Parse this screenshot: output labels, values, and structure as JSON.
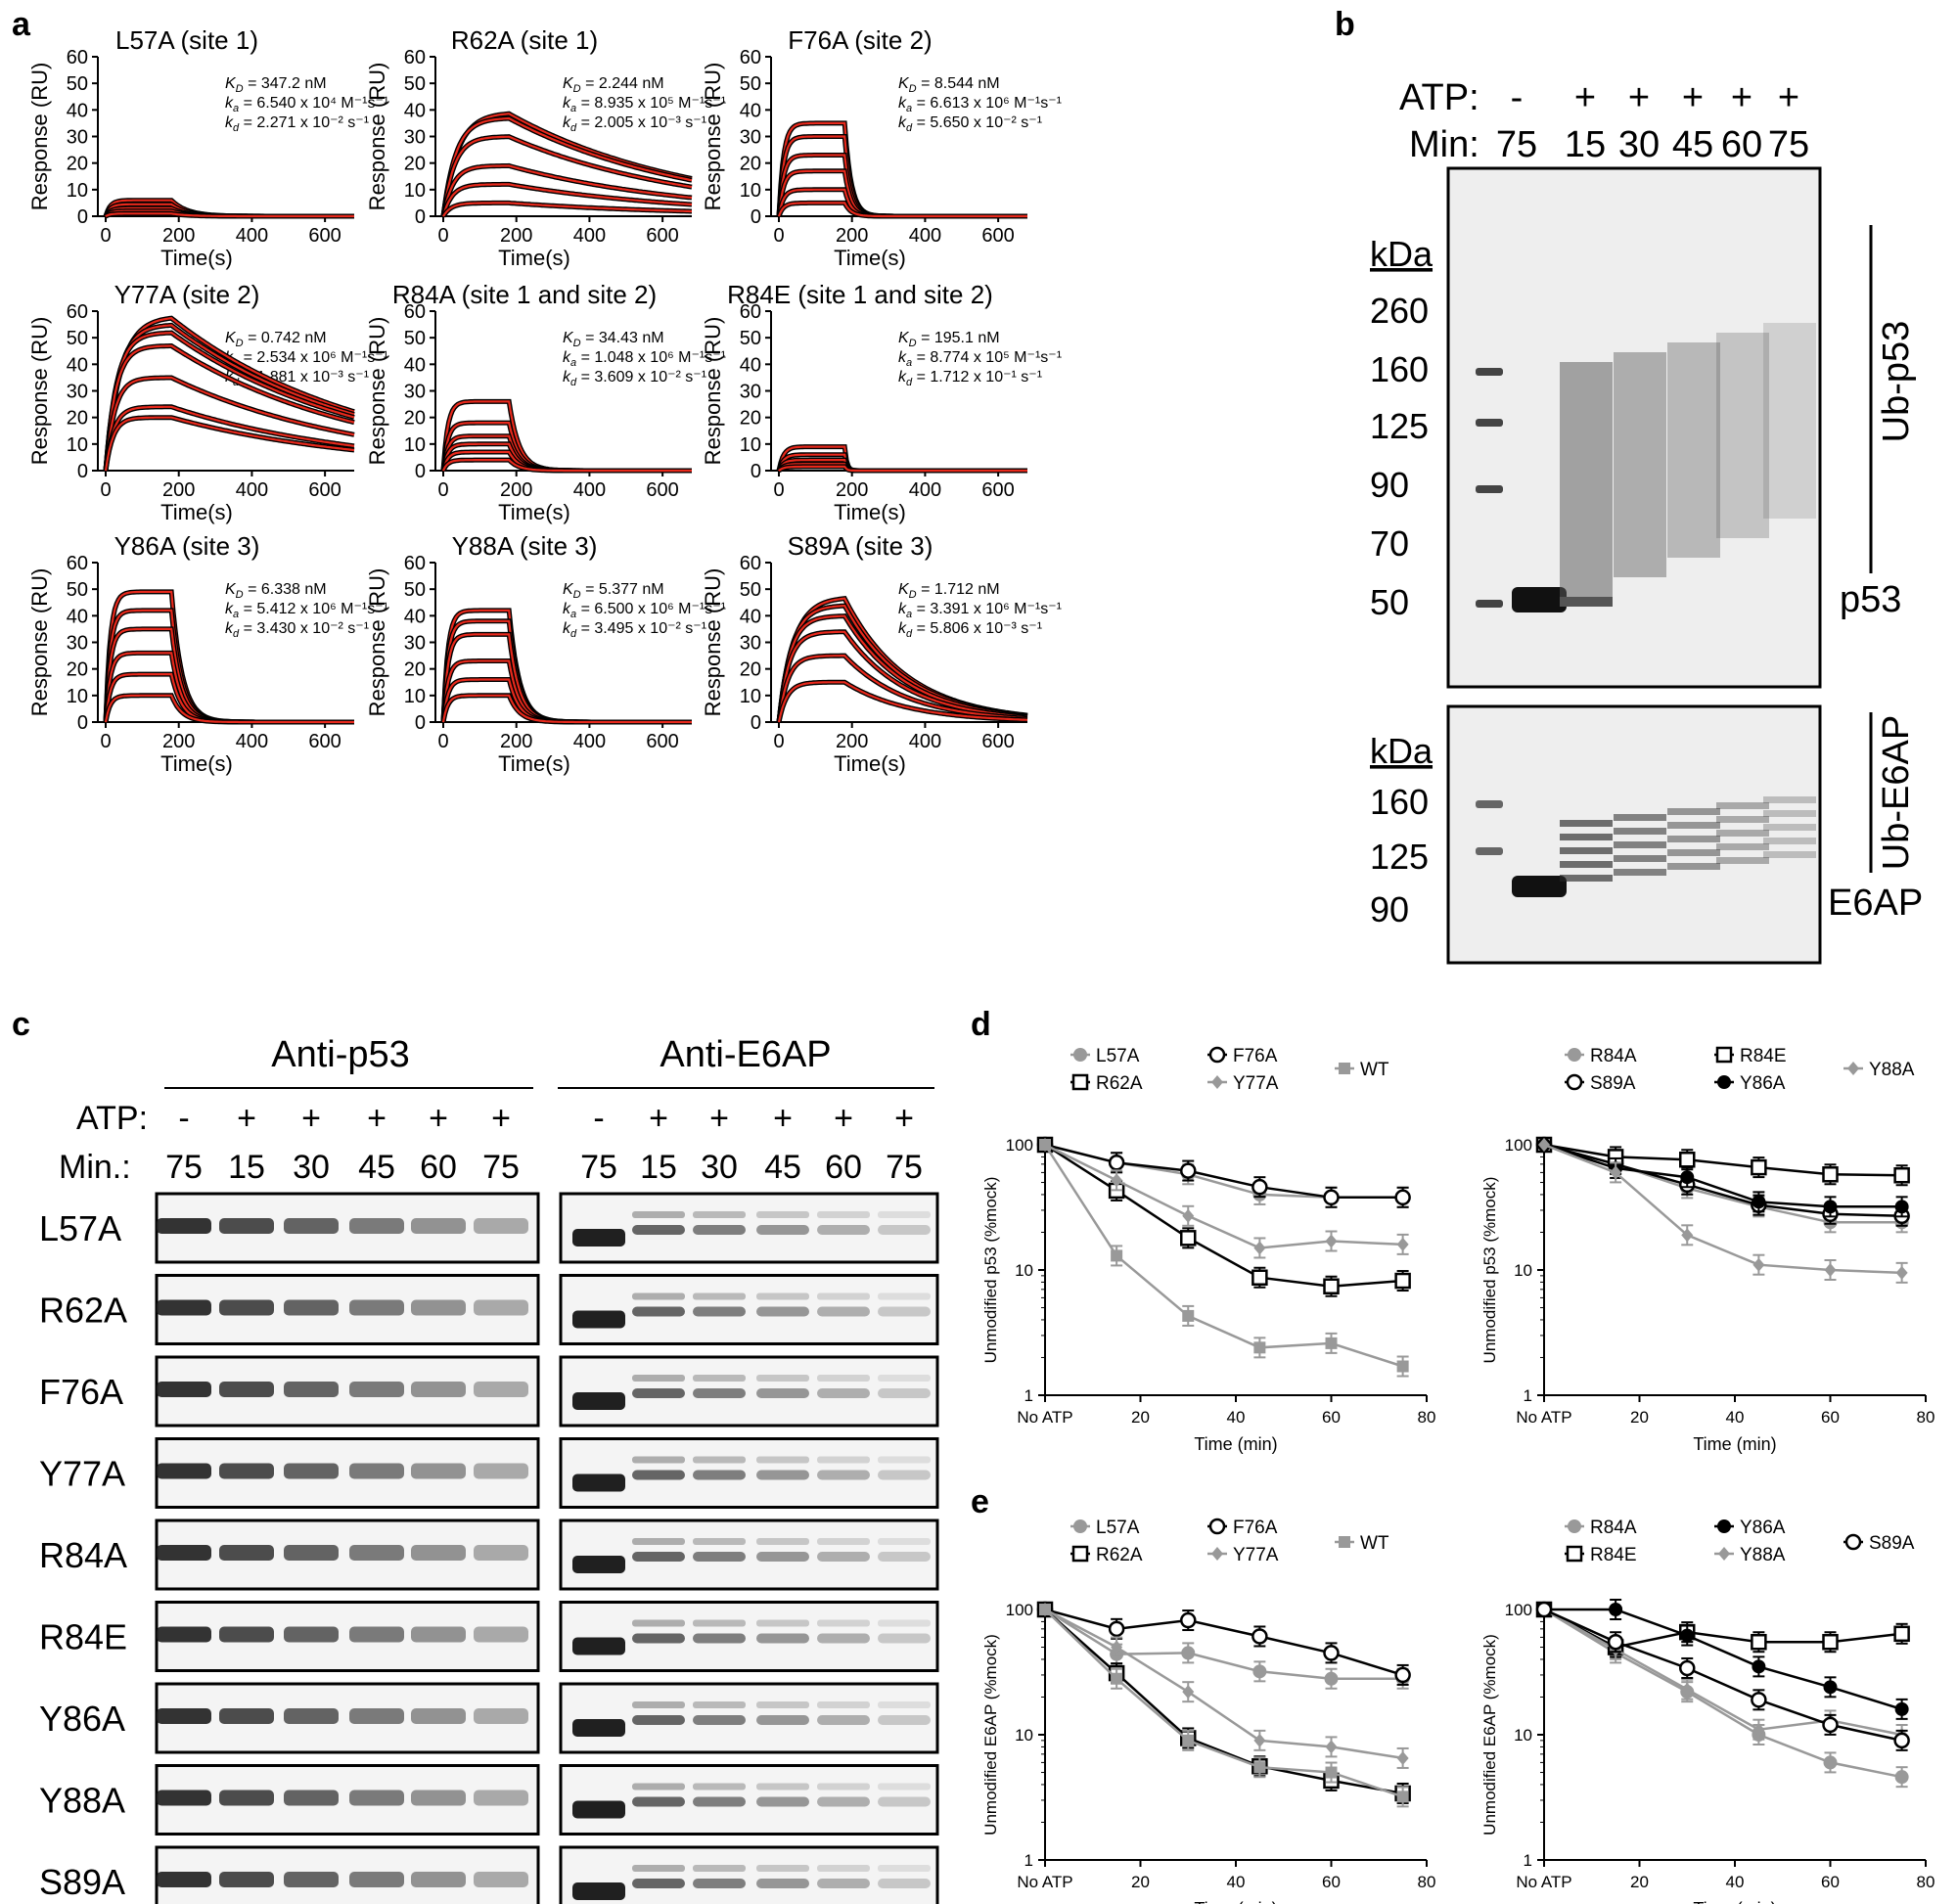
{
  "panel_letters": {
    "a": "a",
    "b": "b",
    "c": "c",
    "d": "d",
    "e": "e"
  },
  "spr": {
    "xlabel": "Time(s)",
    "ylabel": "Response (RU)",
    "xticks": [
      "0",
      "200",
      "400",
      "600"
    ],
    "yticks": [
      "0",
      "10",
      "20",
      "30",
      "40",
      "50",
      "60"
    ],
    "kd_label": "K",
    "kd_sub": "D",
    "ka_label": "k",
    "ka_sub": "a",
    "koff_label": "k",
    "koff_sub": "d",
    "panels": [
      {
        "title": "L57A (site 1)",
        "KD": " = 347.2 nM",
        "ka": " = 6.540 x 10⁴ M⁻¹s⁻¹",
        "kd": " = 2.271 x 10⁻² s⁻¹",
        "plateaus": [
          6,
          4.5,
          3,
          2,
          1
        ],
        "koff": 0.0227,
        "fast": true
      },
      {
        "title": "R62A (site 1)",
        "KD": " = 2.244 nM",
        "ka": " = 8.935 x 10⁵ M⁻¹s⁻¹",
        "kd": " = 2.005 x 10⁻³ s⁻¹",
        "plateaus": [
          39,
          37,
          30,
          19,
          12,
          5
        ],
        "koff": 0.002,
        "fast": false
      },
      {
        "title": "F76A (site 2)",
        "KD": " = 8.544 nM",
        "ka": " = 6.613 x 10⁶ M⁻¹s⁻¹",
        "kd": " = 5.650 x 10⁻² s⁻¹",
        "plateaus": [
          35,
          30,
          23,
          17,
          10,
          5
        ],
        "koff": 0.0565,
        "fast": true
      },
      {
        "title": "Y77A (site 2)",
        "KD": " = 0.742 nM",
        "ka": " = 2.534 x 10⁶ M⁻¹s⁻¹",
        "kd": " = 1.881 x 10⁻³ s⁻¹",
        "plateaus": [
          58,
          55,
          52,
          47,
          35,
          24,
          20
        ],
        "koff": 0.0019,
        "fast": false
      },
      {
        "title": "R84A (site 1 and site 2)",
        "KD": " = 34.43 nM",
        "ka": " = 1.048 x 10⁶ M⁻¹s⁻¹",
        "kd": " = 3.609 x 10⁻² s⁻¹",
        "plateaus": [
          26,
          18,
          13,
          10,
          7,
          4
        ],
        "koff": 0.036,
        "fast": true
      },
      {
        "title": "R84E (site 1 and site 2)",
        "KD": " = 195.1 nM",
        "ka": " = 8.774 x 10⁵ M⁻¹s⁻¹",
        "kd": " = 1.712 x 10⁻¹ s⁻¹",
        "plateaus": [
          9,
          6,
          4,
          2.5,
          1.5
        ],
        "koff": 0.171,
        "fast": true
      },
      {
        "title": "Y86A (site 3)",
        "KD": " = 6.338 nM",
        "ka": " = 5.412 x 10⁶ M⁻¹s⁻¹",
        "kd": " = 3.430 x 10⁻² s⁻¹",
        "plateaus": [
          49,
          42,
          35,
          26,
          18,
          10
        ],
        "koff": 0.0343,
        "fast": true
      },
      {
        "title": "Y88A (site 3)",
        "KD": " = 5.377 nM",
        "ka": " = 6.500 x 10⁶ M⁻¹s⁻¹",
        "kd": " = 3.495 x 10⁻² s⁻¹",
        "plateaus": [
          42,
          38,
          33,
          23,
          16,
          10
        ],
        "koff": 0.035,
        "fast": true
      },
      {
        "title": "S89A (site 3)",
        "KD": " = 1.712 nM",
        "ka": " = 3.391 x 10⁶ M⁻¹s⁻¹",
        "kd": " = 5.806 x 10⁻³ s⁻¹",
        "plateaus": [
          47,
          44,
          40,
          34,
          25,
          15
        ],
        "koff": 0.0058,
        "fast": false
      }
    ]
  },
  "blot_b": {
    "atp_label": "ATP:",
    "min_label": "Min:",
    "atp": [
      "-",
      "+",
      "+",
      "+",
      "+",
      "+"
    ],
    "min": [
      "75",
      "15",
      "30",
      "45",
      "60",
      "75"
    ],
    "kda": "kDa",
    "upper_markers": [
      "260",
      "160",
      "125",
      "90",
      "70",
      "50"
    ],
    "lower_markers": [
      "160",
      "125",
      "90"
    ],
    "ub_p53": "Ub-p53",
    "p53": "p53",
    "ub_e6ap": "Ub-E6AP",
    "e6ap": "E6AP"
  },
  "blot_c": {
    "anti_p53": "Anti-p53",
    "anti_e6ap": "Anti-E6AP",
    "atp_label": "ATP:",
    "min_label": "Min.:",
    "atp": [
      "-",
      "+",
      "+",
      "+",
      "+",
      "+"
    ],
    "min": [
      "75",
      "15",
      "30",
      "45",
      "60",
      "75"
    ],
    "rows": [
      "L57A",
      "R62A",
      "F76A",
      "Y77A",
      "R84A",
      "R84E",
      "Y86A",
      "Y88A",
      "S89A"
    ]
  },
  "chart_data": [
    {
      "type": "line",
      "panel": "d-left",
      "log_y": true,
      "xlabel": "Time (min)",
      "ylabel": "Unmodified p53 (%mock)",
      "x": [
        0,
        15,
        30,
        45,
        60,
        75
      ],
      "x_tick_labels": [
        "No ATP",
        "20",
        "40",
        "60",
        "80"
      ],
      "y_tick_labels": [
        "1",
        "10",
        "100"
      ],
      "ylim": [
        1,
        100
      ],
      "xlim": [
        0,
        80
      ],
      "series": [
        {
          "name": "L57A",
          "color": "#999999",
          "marker": "circle-filled",
          "values": [
            100,
            72,
            58,
            40,
            38,
            38
          ]
        },
        {
          "name": "R62A",
          "color": "#000000",
          "marker": "square-open",
          "values": [
            100,
            43,
            18,
            8.7,
            7.4,
            8.2
          ]
        },
        {
          "name": "F76A",
          "color": "#000000",
          "marker": "circle-open",
          "values": [
            100,
            72,
            62,
            46,
            38,
            38
          ]
        },
        {
          "name": "Y77A",
          "color": "#999999",
          "marker": "diamond-filled",
          "values": [
            100,
            52,
            27,
            15,
            17,
            16
          ]
        },
        {
          "name": "WT",
          "color": "#999999",
          "marker": "square-filled",
          "values": [
            100,
            13,
            4.3,
            2.4,
            2.6,
            1.7
          ]
        }
      ]
    },
    {
      "type": "line",
      "panel": "d-right",
      "log_y": true,
      "xlabel": "Time (min)",
      "ylabel": "Unmodified p53 (%mock)",
      "x": [
        0,
        15,
        30,
        45,
        60,
        75
      ],
      "x_tick_labels": [
        "No ATP",
        "20",
        "40",
        "60",
        "80"
      ],
      "y_tick_labels": [
        "1",
        "10",
        "100"
      ],
      "ylim": [
        1,
        100
      ],
      "xlim": [
        0,
        80
      ],
      "series": [
        {
          "name": "R84A",
          "color": "#999999",
          "marker": "circle-filled",
          "values": [
            100,
            70,
            45,
            32,
            24,
            24
          ]
        },
        {
          "name": "S89A",
          "color": "#000000",
          "marker": "circle-open",
          "values": [
            100,
            70,
            48,
            33,
            28,
            27
          ]
        },
        {
          "name": "R84E",
          "color": "#000000",
          "marker": "square-open",
          "values": [
            100,
            80,
            76,
            66,
            58,
            57
          ]
        },
        {
          "name": "Y86A",
          "color": "#000000",
          "marker": "circle-filled",
          "values": [
            100,
            65,
            55,
            35,
            32,
            32
          ]
        },
        {
          "name": "Y88A",
          "color": "#999999",
          "marker": "diamond-filled",
          "values": [
            100,
            60,
            19,
            11,
            10,
            9.5
          ]
        }
      ]
    },
    {
      "type": "line",
      "panel": "e-left",
      "log_y": true,
      "xlabel": "Time (min)",
      "ylabel": "Unmodified E6AP (%mock)",
      "x": [
        0,
        15,
        30,
        45,
        60,
        75
      ],
      "x_tick_labels": [
        "No ATP",
        "20",
        "40",
        "60",
        "80"
      ],
      "y_tick_labels": [
        "1",
        "10",
        "100"
      ],
      "ylim": [
        1,
        100
      ],
      "xlim": [
        0,
        80
      ],
      "series": [
        {
          "name": "L57A",
          "color": "#999999",
          "marker": "circle-filled",
          "values": [
            100,
            44,
            45,
            32,
            28,
            28
          ]
        },
        {
          "name": "R62A",
          "color": "#000000",
          "marker": "square-open",
          "values": [
            100,
            31,
            9.4,
            5.6,
            4.3,
            3.4
          ]
        },
        {
          "name": "F76A",
          "color": "#000000",
          "marker": "circle-open",
          "values": [
            100,
            70,
            82,
            61,
            45,
            30
          ]
        },
        {
          "name": "Y77A",
          "color": "#999999",
          "marker": "diamond-filled",
          "values": [
            100,
            50,
            22,
            9,
            8,
            6.5
          ]
        },
        {
          "name": "WT",
          "color": "#999999",
          "marker": "square-filled",
          "values": [
            100,
            28,
            9,
            5.5,
            5,
            3.2
          ]
        }
      ]
    },
    {
      "type": "line",
      "panel": "e-right",
      "log_y": true,
      "xlabel": "Time (min)",
      "ylabel": "Unmodified E6AP (%mock)",
      "x": [
        0,
        15,
        30,
        45,
        60,
        75
      ],
      "x_tick_labels": [
        "No ATP",
        "20",
        "40",
        "60",
        "80"
      ],
      "y_tick_labels": [
        "1",
        "10",
        "100"
      ],
      "ylim": [
        1,
        100
      ],
      "xlim": [
        0,
        80
      ],
      "series": [
        {
          "name": "R84A",
          "color": "#999999",
          "marker": "circle-filled",
          "values": [
            100,
            45,
            22,
            10,
            6,
            4.6
          ]
        },
        {
          "name": "R84E",
          "color": "#000000",
          "marker": "square-open",
          "values": [
            100,
            50,
            66,
            55,
            55,
            64
          ]
        },
        {
          "name": "Y86A",
          "color": "#000000",
          "marker": "circle-filled",
          "values": [
            100,
            100,
            62,
            35,
            24,
            16
          ]
        },
        {
          "name": "Y88A",
          "color": "#999999",
          "marker": "diamond-filled",
          "values": [
            100,
            48,
            23,
            11,
            13,
            10
          ]
        },
        {
          "name": "S89A",
          "color": "#000000",
          "marker": "circle-open",
          "values": [
            100,
            55,
            34,
            19,
            12,
            9
          ]
        }
      ]
    }
  ]
}
